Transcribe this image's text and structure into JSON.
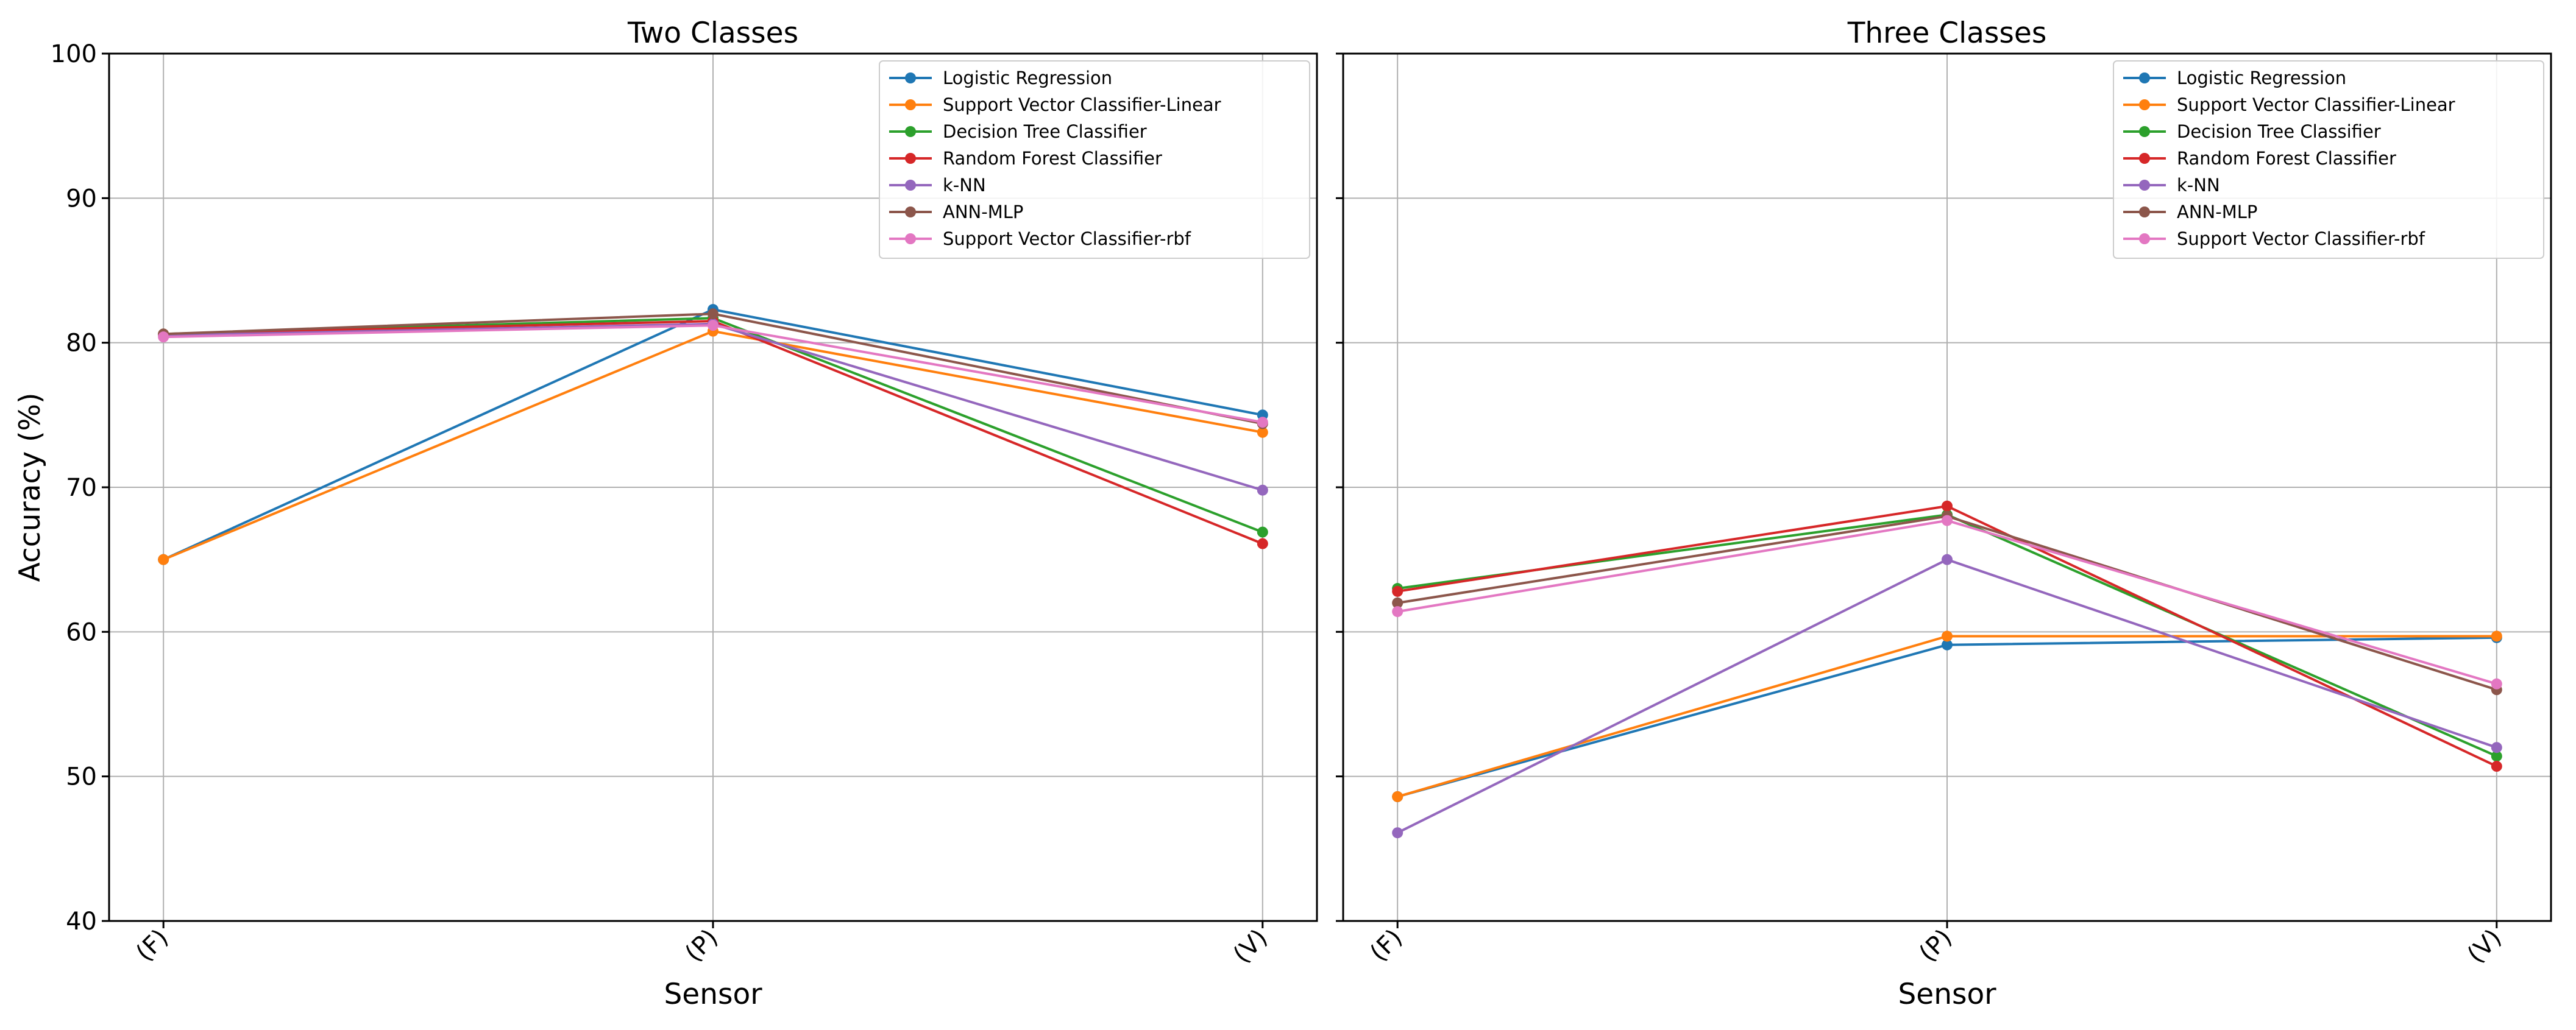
{
  "chart_data": {
    "type": "line",
    "ylabel": "Accuracy (%)",
    "ylim": [
      40,
      100
    ],
    "yticks": [
      40,
      50,
      60,
      70,
      80,
      90,
      100
    ],
    "grid": true,
    "legend_position": "top-right",
    "panels": [
      {
        "title": "Two Classes",
        "xlabel": "Sensor",
        "categories": [
          "(F)",
          "(P)",
          "(V)"
        ],
        "series": [
          {
            "name": "Logistic Regression",
            "color": "#1f77b4",
            "values": [
              65.0,
              82.3,
              75.0
            ]
          },
          {
            "name": "Support Vector Classifier-Linear",
            "color": "#ff7f0e",
            "values": [
              65.0,
              80.8,
              73.8
            ]
          },
          {
            "name": "Decision Tree Classifier",
            "color": "#2ca02c",
            "values": [
              80.6,
              81.7,
              66.9
            ]
          },
          {
            "name": "Random Forest Classifier",
            "color": "#d62728",
            "values": [
              80.6,
              81.5,
              66.1
            ]
          },
          {
            "name": "k-NN",
            "color": "#9467bd",
            "values": [
              80.5,
              81.3,
              69.8
            ]
          },
          {
            "name": "ANN-MLP",
            "color": "#8c564b",
            "values": [
              80.6,
              82.0,
              74.4
            ]
          },
          {
            "name": "Support Vector Classifier-rbf",
            "color": "#e377c2",
            "values": [
              80.4,
              81.2,
              74.5
            ]
          }
        ]
      },
      {
        "title": "Three Classes",
        "xlabel": "Sensor",
        "categories": [
          "(F)",
          "(P)",
          "(V)"
        ],
        "series": [
          {
            "name": "Logistic Regression",
            "color": "#1f77b4",
            "values": [
              48.6,
              59.1,
              59.6
            ]
          },
          {
            "name": "Support Vector Classifier-Linear",
            "color": "#ff7f0e",
            "values": [
              48.6,
              59.7,
              59.7
            ]
          },
          {
            "name": "Decision Tree Classifier",
            "color": "#2ca02c",
            "values": [
              63.0,
              68.1,
              51.4
            ]
          },
          {
            "name": "Random Forest Classifier",
            "color": "#d62728",
            "values": [
              62.8,
              68.7,
              50.7
            ]
          },
          {
            "name": "k-NN",
            "color": "#9467bd",
            "values": [
              46.1,
              65.0,
              52.0
            ]
          },
          {
            "name": "ANN-MLP",
            "color": "#8c564b",
            "values": [
              62.0,
              68.0,
              56.0
            ]
          },
          {
            "name": "Support Vector Classifier-rbf",
            "color": "#e377c2",
            "values": [
              61.4,
              67.7,
              56.4
            ]
          }
        ]
      }
    ]
  }
}
